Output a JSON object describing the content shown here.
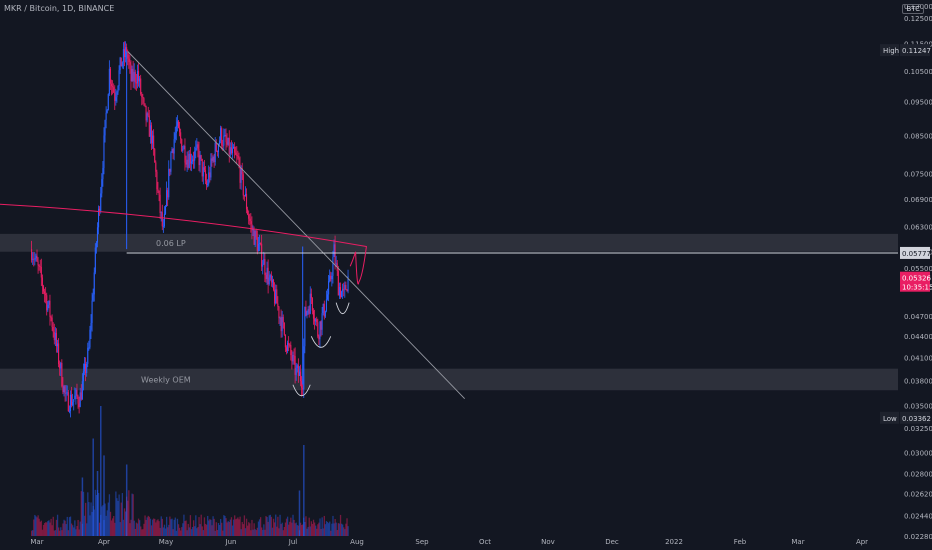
{
  "header": {
    "symbol_line": "MKR / Bitcoin, 1D, BINANCE",
    "currency": "BTC"
  },
  "colors": {
    "background": "#131722",
    "up": "#2962ff",
    "down": "#e91e63",
    "axis_text": "#b2b5be",
    "zone": "#434651",
    "annotation": "#e91e63"
  },
  "chart_data": {
    "type": "candlestick",
    "x_tick_labels": [
      "Mar",
      "Apr",
      "May",
      "Jun",
      "Jul",
      "Aug",
      "Sep",
      "Oct",
      "Nov",
      "Dec",
      "2022",
      "Feb",
      "Mar",
      "Apr"
    ],
    "y_tick_labels": [
      "0.13000",
      "0.12500",
      "0.11500",
      "0.10500",
      "0.09500",
      "0.08500",
      "0.07500",
      "0.06900",
      "0.06300",
      "0.05800",
      "0.05500",
      "0.04700",
      "0.04400",
      "0.04100",
      "0.03800",
      "0.03500",
      "0.03250",
      "0.03000",
      "0.02800",
      "0.02620",
      "0.02440",
      "0.02280"
    ],
    "y_scale": "log",
    "y_range": [
      0.0228,
      0.13
    ],
    "high": {
      "label": "High",
      "value": "0.11247"
    },
    "low": {
      "label": "Low",
      "value": "0.03362"
    },
    "price_marker": {
      "value": "0.05777"
    },
    "last_price": {
      "value": "0.05326",
      "countdown": "10:35:15"
    },
    "zones": [
      {
        "label": "0.06 LP",
        "from": 0.058,
        "to": 0.0615
      },
      {
        "label": "Weekly OEM",
        "from": 0.0368,
        "to": 0.0395
      }
    ],
    "key_path": [
      [
        "Feb 24",
        0.0585
      ],
      [
        "Mar 5",
        0.053
      ],
      [
        "Mar 15",
        0.046
      ],
      [
        "Mar 28",
        0.0355
      ],
      [
        "Apr 10",
        0.036
      ],
      [
        "Apr 18",
        0.042
      ],
      [
        "Apr 25",
        0.06
      ],
      [
        "Apr 30",
        0.075
      ],
      [
        "May 7",
        0.105
      ],
      [
        "May 12",
        0.097
      ],
      [
        "May 18",
        0.108
      ],
      [
        "May 23",
        0.112
      ],
      [
        "May 27",
        0.102
      ],
      [
        "Jun 2",
        0.104
      ],
      [
        "Jun 8",
        0.092
      ],
      [
        "Jun 15",
        0.085
      ],
      [
        "Jun 22",
        0.068
      ],
      [
        "Jun 26",
        0.0615
      ],
      [
        "Jul 3",
        0.08
      ],
      [
        "Jul 8",
        0.087
      ],
      [
        "Jul 18",
        0.079
      ],
      [
        "Jul 28",
        0.08
      ],
      [
        "Aug 5",
        0.072
      ],
      [
        "Aug 12",
        0.08
      ],
      [
        "Aug 18",
        0.085
      ],
      [
        "Aug 28",
        0.08
      ],
      [
        "Sep 3",
        0.078
      ],
      [
        "Sep 9",
        0.07
      ],
      [
        "Sep 15",
        0.063
      ],
      [
        "Sep 22",
        0.059
      ],
      [
        "Sep 30",
        0.054
      ],
      [
        "Oct 9",
        0.049
      ],
      [
        "Oct 18",
        0.043
      ],
      [
        "Oct 27",
        0.039
      ],
      [
        "Nov 2",
        0.0382
      ],
      [
        "Nov 4",
        0.047
      ],
      [
        "Nov 10",
        0.05
      ],
      [
        "Nov 16",
        0.0445
      ],
      [
        "Nov 22",
        0.048
      ],
      [
        "Nov 27",
        0.052
      ],
      [
        "Dec 1",
        0.058
      ],
      [
        "Dec 5",
        0.052
      ],
      [
        "Dec 10",
        0.05
      ],
      [
        "Dec 14",
        0.0533
      ]
    ],
    "trendline": {
      "from": [
        "May 24",
        0.112
      ],
      "to": [
        "Apr 1 2022",
        0.0358
      ]
    },
    "projection": [
      [
        "Dec 16",
        0.0553
      ],
      [
        "Dec 21",
        0.058
      ],
      [
        "Dec 24",
        0.0525
      ],
      [
        "Dec 31",
        0.059
      ],
      [
        "Jan 10",
        0.068
      ]
    ],
    "volume": {
      "baseline_max_fraction": 0.18,
      "spikes": [
        [
          "Apr 29",
          1.0
        ],
        [
          "May 2",
          0.62
        ],
        [
          "Apr 22",
          0.75
        ],
        [
          "Apr 12",
          0.45
        ],
        [
          "May 23",
          0.55
        ],
        [
          "Nov 3",
          0.7
        ],
        [
          "Oct 30",
          0.35
        ],
        [
          "Apr 26",
          0.5
        ]
      ]
    }
  }
}
